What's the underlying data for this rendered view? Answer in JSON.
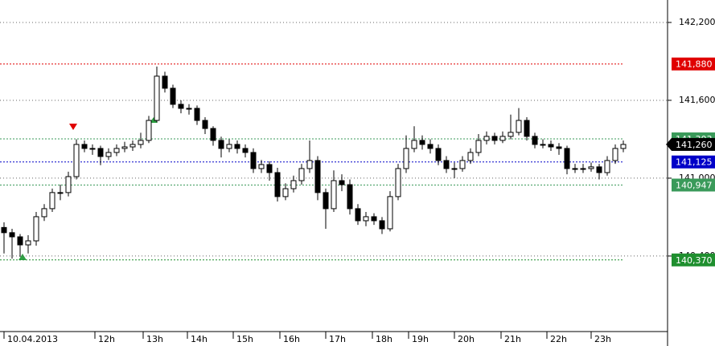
{
  "chart_data": {
    "type": "candlestick",
    "xlim": [
      -0.5,
      82.5
    ],
    "xticks": [
      {
        "value": 0,
        "label": "10.04.2013"
      },
      {
        "value": 11.3,
        "label": "12h"
      },
      {
        "value": 17.3,
        "label": "13h"
      },
      {
        "value": 22.8,
        "label": "14h"
      },
      {
        "value": 28.5,
        "label": "15h"
      },
      {
        "value": 34.3,
        "label": "16h"
      },
      {
        "value": 40,
        "label": "17h"
      },
      {
        "value": 45.8,
        "label": "18h"
      },
      {
        "value": 50.3,
        "label": "19h"
      },
      {
        "value": 56,
        "label": "20h"
      },
      {
        "value": 61.8,
        "label": "21h"
      },
      {
        "value": 67.5,
        "label": "22h"
      },
      {
        "value": 73,
        "label": "23h"
      }
    ],
    "ylim": [
      139818,
      142373
    ],
    "yticks": [
      {
        "value": 142200,
        "label": "142,200"
      },
      {
        "value": 141600,
        "label": "141,600"
      },
      {
        "value": 141000,
        "label": "141,000"
      },
      {
        "value": 140400,
        "label": "140,400"
      }
    ],
    "grid": true,
    "up_color": "#ffffff",
    "down_color": "#000000",
    "open": [
      140620,
      140580,
      140548,
      140486,
      140517,
      140703,
      140765,
      140889,
      140889,
      141012,
      141260,
      141229,
      141229,
      141167,
      141198,
      141229,
      141241,
      141260,
      141291,
      141445,
      141786,
      141693,
      141569,
      141538,
      141538,
      141445,
      141383,
      141291,
      141229,
      141260,
      141229,
      141198,
      141074,
      141105,
      141043,
      140858,
      140919,
      140981,
      141074,
      141136,
      140889,
      140765,
      140981,
      140950,
      140765,
      140672,
      140703,
      140672,
      140610,
      140858,
      141074,
      141229,
      141291,
      141260,
      141229,
      141136,
      141074,
      141074,
      141136,
      141198,
      141291,
      141322,
      141291,
      141322,
      141353,
      141445,
      141322,
      141260,
      141260,
      141241,
      141229,
      141074,
      141074,
      141074,
      141087,
      141043,
      141136,
      141229
    ],
    "high": [
      140660,
      140610,
      140570,
      140560,
      140740,
      140800,
      140920,
      140950,
      141050,
      141300,
      141290,
      141260,
      141250,
      141230,
      141260,
      141280,
      141290,
      141350,
      141480,
      141860,
      141820,
      141720,
      141600,
      141570,
      141560,
      141470,
      141400,
      141320,
      141300,
      141290,
      141260,
      141230,
      141140,
      141130,
      141080,
      140960,
      141020,
      141110,
      141290,
      141170,
      140920,
      141060,
      141030,
      140990,
      140800,
      140740,
      140730,
      140700,
      140900,
      141110,
      141330,
      141400,
      141330,
      141300,
      141260,
      141170,
      141120,
      141170,
      141230,
      141340,
      141360,
      141350,
      141360,
      141490,
      141540,
      141470,
      141350,
      141300,
      141290,
      141270,
      141250,
      141110,
      141110,
      141120,
      141110,
      141170,
      141260,
      141290
    ],
    "low": [
      140420,
      140380,
      140394,
      140420,
      140480,
      140670,
      140740,
      140830,
      140860,
      140990,
      141200,
      141180,
      141100,
      141140,
      141170,
      141200,
      141210,
      141230,
      141270,
      141430,
      141660,
      141540,
      141500,
      141490,
      141410,
      141340,
      141250,
      141160,
      141200,
      141190,
      141160,
      141040,
      141040,
      140980,
      140820,
      140830,
      140890,
      140950,
      141040,
      140830,
      140610,
      140740,
      140900,
      140720,
      140640,
      140630,
      140640,
      140570,
      140590,
      140830,
      141040,
      141200,
      141220,
      141190,
      141100,
      141040,
      141000,
      141050,
      141110,
      141170,
      141260,
      141260,
      141270,
      141300,
      141330,
      141290,
      141230,
      141230,
      141210,
      141180,
      141030,
      141040,
      141040,
      141050,
      140990,
      141020,
      141110,
      141200
    ],
    "close": [
      140580,
      140548,
      140486,
      140517,
      140703,
      140765,
      140889,
      140889,
      141012,
      141260,
      141229,
      141229,
      141167,
      141198,
      141229,
      141241,
      141260,
      141291,
      141445,
      141786,
      141693,
      141569,
      141538,
      141538,
      141445,
      141383,
      141291,
      141229,
      141260,
      141229,
      141198,
      141074,
      141105,
      141043,
      140858,
      140919,
      140981,
      141074,
      141136,
      140889,
      140765,
      140981,
      140950,
      140765,
      140672,
      140703,
      140672,
      140610,
      140858,
      141074,
      141229,
      141291,
      141260,
      141229,
      141136,
      141074,
      141074,
      141136,
      141198,
      141291,
      141322,
      141291,
      141322,
      141353,
      141445,
      141322,
      141260,
      141260,
      141241,
      141229,
      141074,
      141074,
      141074,
      141087,
      141043,
      141136,
      141229,
      141260
    ],
    "levels": [
      {
        "value": 141880,
        "label": "141,880",
        "color": "#e00000"
      },
      {
        "value": 141303,
        "label": "141,303",
        "color": "#3a9a5a"
      },
      {
        "value": 141125,
        "label": "141,125",
        "color": "#0000c8"
      },
      {
        "value": 140947,
        "label": "140,947",
        "color": "#3a9a5a"
      },
      {
        "value": 140370,
        "label": "140,370",
        "color": "#1f8f2f"
      }
    ],
    "last_price": {
      "value": 141260,
      "label": "141,260",
      "color": "#000000"
    }
  }
}
